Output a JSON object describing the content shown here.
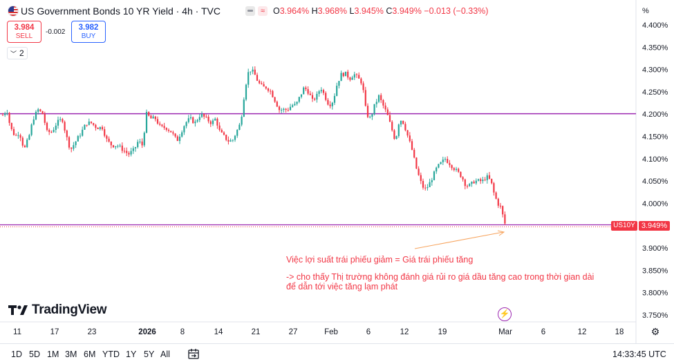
{
  "header": {
    "title": "US Government Bonds 10 YR Yield · 4h · TVC",
    "ohlc": [
      {
        "label": "O",
        "value": "3.964%"
      },
      {
        "label": "H",
        "value": "3.968%"
      },
      {
        "label": "L",
        "value": "3.945%"
      },
      {
        "label": "C",
        "value": "3.949%"
      }
    ],
    "change": "−0.013 (−0.33%)",
    "icons": [
      "us-flag-icon",
      "hide-icon",
      "compare-wave-icon"
    ]
  },
  "trade": {
    "sell_price": "3.984",
    "sell_label": "SELL",
    "spread": "-0.002",
    "buy_price": "3.982",
    "buy_label": "BUY"
  },
  "indicators_toggle": {
    "count": "2"
  },
  "price_axis": {
    "unit": "%",
    "labels": [
      "4.400%",
      "4.350%",
      "4.300%",
      "4.250%",
      "4.200%",
      "4.150%",
      "4.100%",
      "4.050%",
      "4.000%",
      "3.900%",
      "3.850%",
      "3.800%",
      "3.750%"
    ],
    "symbol_tag": "US10Y",
    "price_tag": "3.949%"
  },
  "time_axis": {
    "labels": [
      "11",
      "17",
      "23",
      "2026",
      "8",
      "14",
      "21",
      "27",
      "Feb",
      "6",
      "12",
      "19",
      "Mar",
      "6",
      "12",
      "18"
    ]
  },
  "annotation": {
    "line1": "Việc lợi suất trái phiếu giảm = Giá trái phiếu tăng",
    "line2": "-> cho thấy Thị trường không đánh giá rủi ro giá dầu tăng cao trong thời gian dài",
    "line3": "để dẫn tới việc tăng lạm phát"
  },
  "logo": {
    "text": "TradingView"
  },
  "bottom_bar": {
    "ranges": [
      "1D",
      "5D",
      "1M",
      "3M",
      "6M",
      "YTD",
      "1Y",
      "5Y",
      "All"
    ],
    "clock": "14:33:45 UTC"
  },
  "colors": {
    "up": "#26a69a",
    "down": "#f23645",
    "level_line": "#9c27b0",
    "arrow": "#f7a35c"
  },
  "chart_data": {
    "type": "candlestick",
    "symbol": "US10Y",
    "interval": "4h",
    "ylim": [
      3.72,
      4.42
    ],
    "horizontal_levels": [
      4.201,
      3.952
    ],
    "path": [
      [
        0,
        4.19
      ],
      [
        10,
        4.21
      ],
      [
        15,
        4.17
      ],
      [
        22,
        4.15
      ],
      [
        28,
        4.16
      ],
      [
        35,
        4.12
      ],
      [
        42,
        4.15
      ],
      [
        48,
        4.19
      ],
      [
        55,
        4.21
      ],
      [
        62,
        4.2
      ],
      [
        68,
        4.16
      ],
      [
        75,
        4.16
      ],
      [
        82,
        4.18
      ],
      [
        90,
        4.19
      ],
      [
        96,
        4.15
      ],
      [
        102,
        4.12
      ],
      [
        110,
        4.14
      ],
      [
        118,
        4.16
      ],
      [
        125,
        4.18
      ],
      [
        132,
        4.18
      ],
      [
        140,
        4.17
      ],
      [
        148,
        4.17
      ],
      [
        155,
        4.14
      ],
      [
        162,
        4.13
      ],
      [
        170,
        4.13
      ],
      [
        178,
        4.12
      ],
      [
        186,
        4.11
      ],
      [
        194,
        4.12
      ],
      [
        200,
        4.14
      ],
      [
        206,
        4.13
      ],
      [
        212,
        4.2
      ],
      [
        218,
        4.19
      ],
      [
        225,
        4.19
      ],
      [
        232,
        4.17
      ],
      [
        240,
        4.17
      ],
      [
        248,
        4.16
      ],
      [
        256,
        4.14
      ],
      [
        262,
        4.16
      ],
      [
        268,
        4.18
      ],
      [
        275,
        4.19
      ],
      [
        282,
        4.18
      ],
      [
        290,
        4.2
      ],
      [
        298,
        4.19
      ],
      [
        306,
        4.18
      ],
      [
        312,
        4.19
      ],
      [
        318,
        4.16
      ],
      [
        324,
        4.15
      ],
      [
        330,
        4.14
      ],
      [
        336,
        4.14
      ],
      [
        342,
        4.16
      ],
      [
        348,
        4.18
      ],
      [
        353,
        4.24
      ],
      [
        358,
        4.29
      ],
      [
        363,
        4.3
      ],
      [
        368,
        4.29
      ],
      [
        374,
        4.27
      ],
      [
        380,
        4.26
      ],
      [
        386,
        4.26
      ],
      [
        392,
        4.25
      ],
      [
        398,
        4.23
      ],
      [
        404,
        4.21
      ],
      [
        410,
        4.21
      ],
      [
        416,
        4.21
      ],
      [
        422,
        4.22
      ],
      [
        428,
        4.22
      ],
      [
        434,
        4.24
      ],
      [
        440,
        4.26
      ],
      [
        446,
        4.25
      ],
      [
        452,
        4.23
      ],
      [
        458,
        4.24
      ],
      [
        464,
        4.26
      ],
      [
        470,
        4.24
      ],
      [
        476,
        4.22
      ],
      [
        482,
        4.23
      ],
      [
        488,
        4.27
      ],
      [
        494,
        4.29
      ],
      [
        500,
        4.29
      ],
      [
        506,
        4.28
      ],
      [
        512,
        4.29
      ],
      [
        518,
        4.28
      ],
      [
        524,
        4.27
      ],
      [
        530,
        4.2
      ],
      [
        536,
        4.19
      ],
      [
        542,
        4.22
      ],
      [
        548,
        4.24
      ],
      [
        554,
        4.22
      ],
      [
        560,
        4.2
      ],
      [
        566,
        4.17
      ],
      [
        572,
        4.14
      ],
      [
        578,
        4.19
      ],
      [
        584,
        4.18
      ],
      [
        590,
        4.15
      ],
      [
        596,
        4.12
      ],
      [
        602,
        4.08
      ],
      [
        608,
        4.05
      ],
      [
        614,
        4.03
      ],
      [
        620,
        4.04
      ],
      [
        626,
        4.06
      ],
      [
        632,
        4.08
      ],
      [
        638,
        4.09
      ],
      [
        644,
        4.1
      ],
      [
        650,
        4.09
      ],
      [
        656,
        4.08
      ],
      [
        662,
        4.07
      ],
      [
        668,
        4.06
      ],
      [
        674,
        4.04
      ],
      [
        680,
        4.04
      ],
      [
        686,
        4.05
      ],
      [
        692,
        4.05
      ],
      [
        698,
        4.05
      ],
      [
        704,
        4.06
      ],
      [
        710,
        4.05
      ],
      [
        715,
        4.02
      ],
      [
        720,
        4.0
      ],
      [
        725,
        3.99
      ],
      [
        729,
        3.96
      ],
      [
        732,
        3.949
      ]
    ]
  }
}
